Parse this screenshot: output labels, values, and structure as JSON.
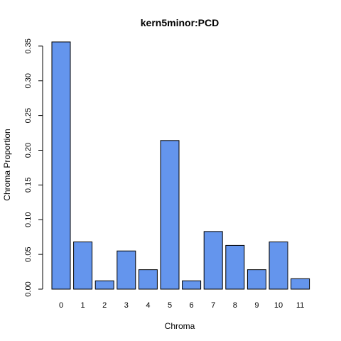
{
  "chart_data": {
    "type": "bar",
    "title": "kern5minor:PCD",
    "xlabel": "Chroma",
    "ylabel": "Chroma Proportion",
    "categories": [
      "0",
      "1",
      "2",
      "3",
      "4",
      "5",
      "6",
      "7",
      "8",
      "9",
      "10",
      "11"
    ],
    "values": [
      0.356,
      0.068,
      0.012,
      0.055,
      0.028,
      0.214,
      0.012,
      0.083,
      0.063,
      0.028,
      0.068,
      0.015
    ],
    "ylim": [
      0,
      0.356
    ],
    "yticks": [
      "0.00",
      "0.05",
      "0.10",
      "0.15",
      "0.20",
      "0.25",
      "0.30",
      "0.35"
    ],
    "grid": false,
    "legend": "none",
    "bar_color": "#6495ED",
    "bar_border_color": "#000000"
  }
}
